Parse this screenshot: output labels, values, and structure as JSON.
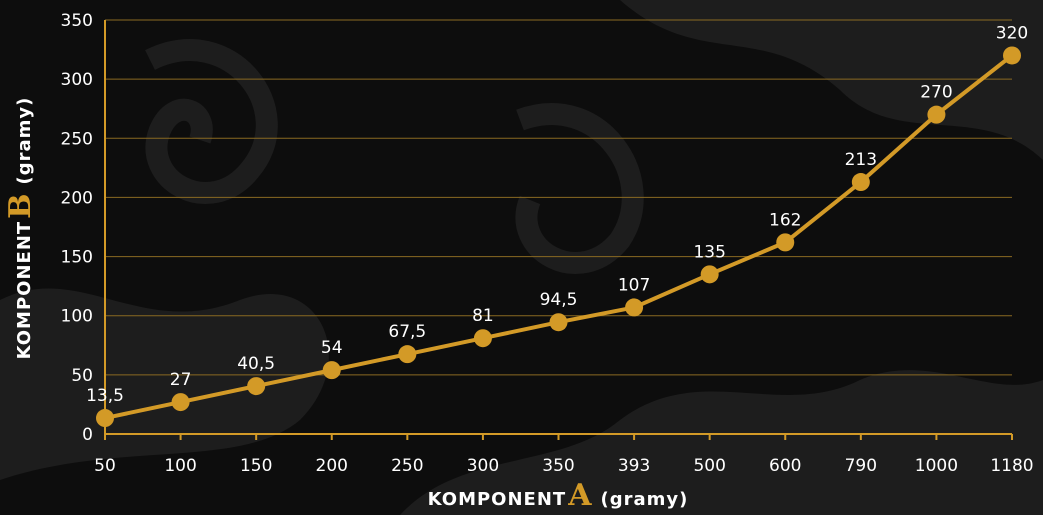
{
  "colors": {
    "background": "#0d0d0d",
    "swirl": "#1f1f1f",
    "accent": "#d39a27",
    "grid": "#8a6a22",
    "text": "#ffffff"
  },
  "chart_data": {
    "type": "line",
    "categories": [
      "50",
      "100",
      "150",
      "200",
      "250",
      "300",
      "350",
      "393",
      "500",
      "600",
      "790",
      "1000",
      "1180"
    ],
    "values": [
      13.5,
      27,
      40.5,
      54,
      67.5,
      81,
      94.5,
      107,
      135,
      162,
      213,
      270,
      320
    ],
    "data_labels": [
      "13,5",
      "27",
      "40,5",
      "54",
      "67,5",
      "81",
      "94,5",
      "107",
      "135",
      "162",
      "213",
      "270",
      "320"
    ],
    "ylim": [
      0,
      350
    ],
    "yticks": [
      "0",
      "50",
      "100",
      "150",
      "200",
      "250",
      "300",
      "350"
    ],
    "xlabel": {
      "prefix": "KOMPONENT",
      "letter": "A",
      "suffix": "(gramy)"
    },
    "ylabel": {
      "prefix": "KOMPONENT",
      "letter": "B",
      "suffix": "(gramy)"
    },
    "grid": true,
    "legend": "none"
  }
}
